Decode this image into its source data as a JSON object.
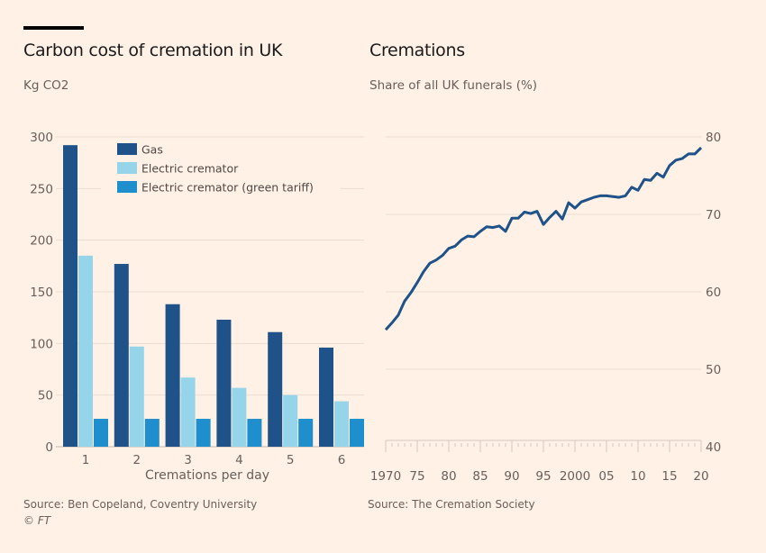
{
  "colors": {
    "background": "#fff1e5",
    "gas": "#1e5289",
    "electric": "#96d4ea",
    "green": "#1e8fcc",
    "line": "#1e5289",
    "grid": "#e9ddd2"
  },
  "footer": {
    "copyright": "© FT"
  },
  "chart_data": [
    {
      "type": "bar",
      "title": "Carbon cost of cremation in UK",
      "subtitle": "Kg CO2",
      "xlabel": "Cremations per day",
      "ylabel": "Kg CO2",
      "ylim": [
        0,
        300
      ],
      "yticks": [
        0,
        50,
        100,
        150,
        200,
        250,
        300
      ],
      "categories": [
        "1",
        "2",
        "3",
        "4",
        "5",
        "6"
      ],
      "series": [
        {
          "name": "Gas",
          "color": "#1e5289",
          "values": [
            292,
            177,
            138,
            123,
            111,
            96
          ]
        },
        {
          "name": "Electric cremator",
          "color": "#96d4ea",
          "values": [
            185,
            97,
            67,
            57,
            50,
            44
          ]
        },
        {
          "name": "Electric cremator (green tariff)",
          "color": "#1e8fcc",
          "values": [
            27,
            27,
            27,
            27,
            27,
            27
          ]
        }
      ],
      "legend": "top-left",
      "grid": true,
      "source": "Source: Ben Copeland, Coventry University"
    },
    {
      "type": "line",
      "title": "Cremations",
      "subtitle": "Share of all UK funerals (%)",
      "xlabel": "",
      "ylabel": "Share of all UK funerals (%)",
      "xlim": [
        1970,
        2020
      ],
      "ylim": [
        40,
        80
      ],
      "yticks": [
        40,
        50,
        60,
        70,
        80
      ],
      "xticks": [
        1970,
        1975,
        1980,
        1985,
        1990,
        1995,
        2000,
        2005,
        2010,
        2015,
        2020
      ],
      "xtick_labels": [
        "1970",
        "75",
        "80",
        "85",
        "90",
        "95",
        "2000",
        "05",
        "10",
        "15",
        "20"
      ],
      "yaxis_side": "right",
      "grid": true,
      "series": [
        {
          "name": "Cremations share",
          "color": "#1e5289",
          "x": [
            1970,
            1971,
            1972,
            1973,
            1974,
            1975,
            1976,
            1977,
            1978,
            1979,
            1980,
            1981,
            1982,
            1983,
            1984,
            1985,
            1986,
            1987,
            1988,
            1989,
            1990,
            1991,
            1992,
            1993,
            1994,
            1995,
            1996,
            1997,
            1998,
            1999,
            2000,
            2001,
            2002,
            2003,
            2004,
            2005,
            2006,
            2007,
            2008,
            2009,
            2010,
            2011,
            2012,
            2013,
            2014,
            2015,
            2016,
            2017,
            2018,
            2019,
            2020
          ],
          "values": [
            55.1,
            56.0,
            57.0,
            58.8,
            59.9,
            61.2,
            62.6,
            63.7,
            64.1,
            64.7,
            65.6,
            65.9,
            66.7,
            67.2,
            67.1,
            67.8,
            68.4,
            68.3,
            68.5,
            67.8,
            69.5,
            69.5,
            70.3,
            70.1,
            70.4,
            68.7,
            69.6,
            70.4,
            69.4,
            71.5,
            70.8,
            71.6,
            71.9,
            72.2,
            72.4,
            72.4,
            72.3,
            72.2,
            72.4,
            73.5,
            73.1,
            74.5,
            74.4,
            75.3,
            74.8,
            76.3,
            77.0,
            77.2,
            77.8,
            77.8,
            78.6
          ]
        }
      ],
      "source": "Source: The Cremation Society"
    }
  ]
}
